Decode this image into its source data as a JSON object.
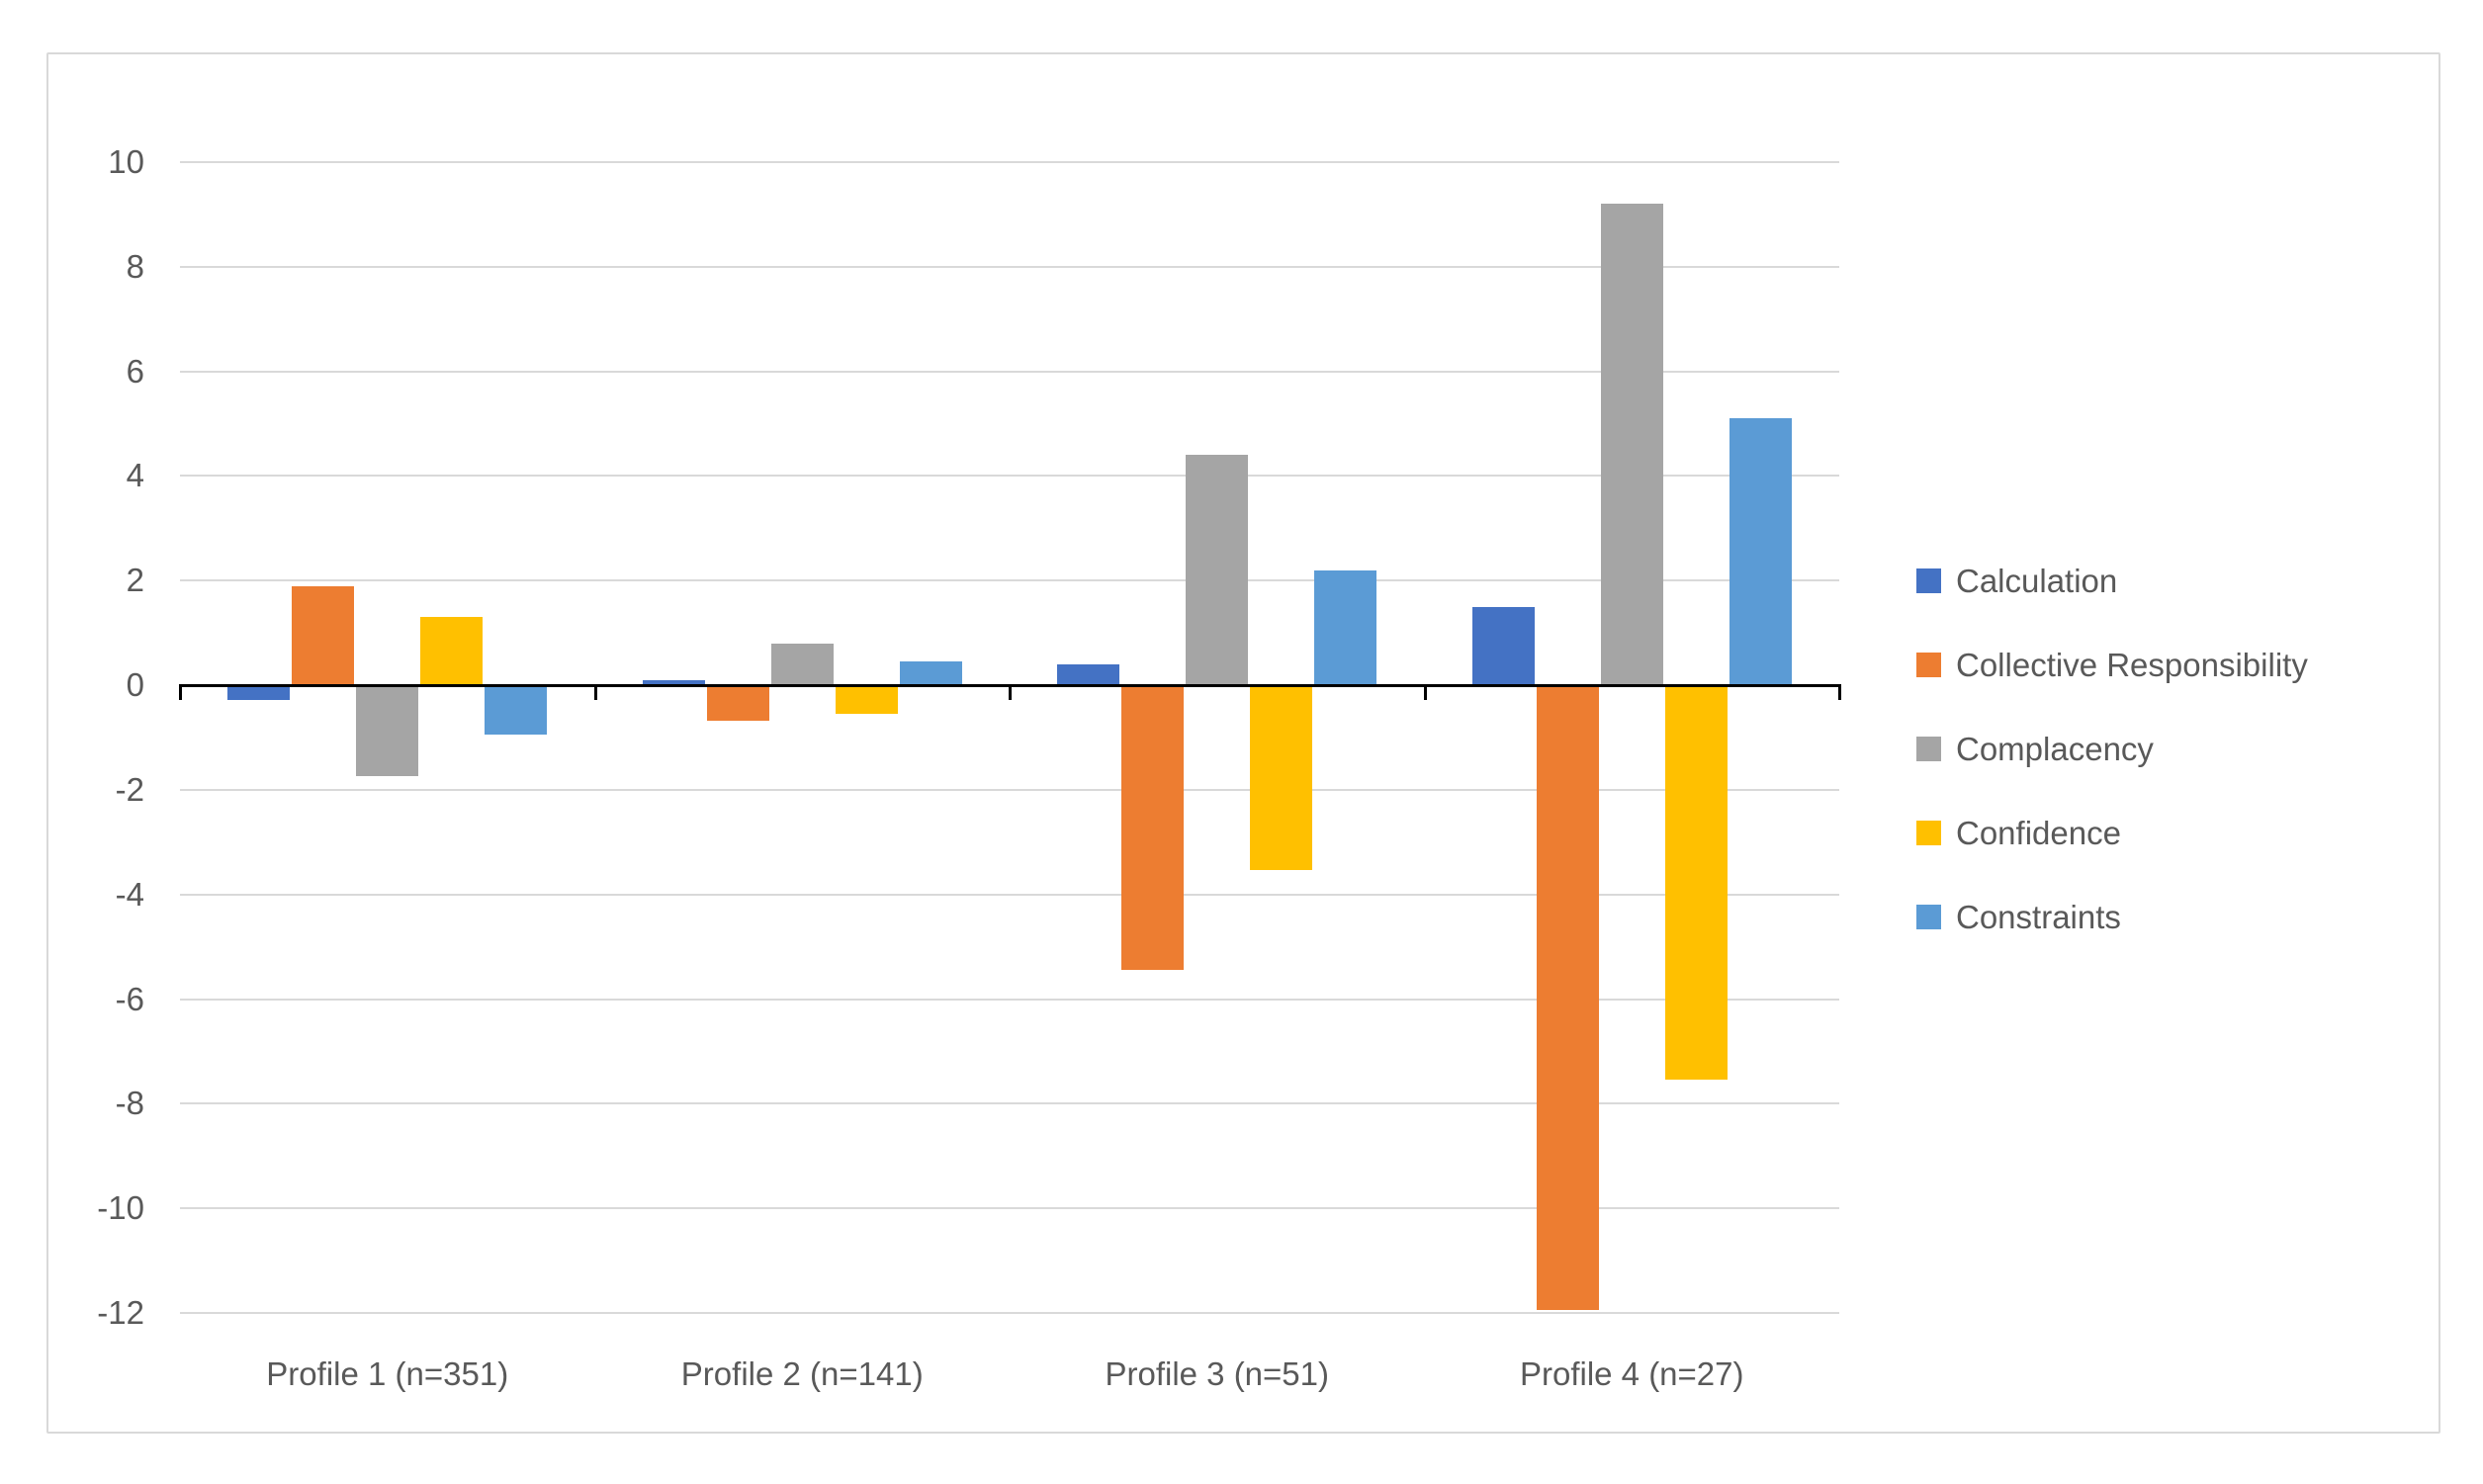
{
  "chart_data": {
    "type": "bar",
    "title": "",
    "xlabel": "",
    "ylabel": "",
    "categories": [
      "Profile 1 (n=351)",
      "Profile 2 (n=141)",
      "Profile 3 (n=51)",
      "Profile 4 (n=27)"
    ],
    "series": [
      {
        "name": "Calculation",
        "color": "#4472C4",
        "values": [
          -0.25,
          0.1,
          0.4,
          1.5
        ]
      },
      {
        "name": "Collective Responsibility",
        "color": "#ED7D31",
        "values": [
          1.9,
          -0.65,
          -5.4,
          -11.9
        ]
      },
      {
        "name": "Complacency",
        "color": "#A5A5A5",
        "values": [
          -1.7,
          0.8,
          4.4,
          9.2
        ]
      },
      {
        "name": "Confidence",
        "color": "#FFC000",
        "values": [
          1.3,
          -0.5,
          -3.5,
          -7.5
        ]
      },
      {
        "name": "Constraints",
        "color": "#5B9BD5",
        "values": [
          -0.9,
          0.45,
          2.2,
          5.1
        ]
      }
    ],
    "y_axis": {
      "min": -12,
      "max": 10,
      "step": 2,
      "tick_labels": [
        "10",
        "8",
        "6",
        "4",
        "2",
        "0",
        "-2",
        "-4",
        "-6",
        "-8",
        "-10",
        "-12"
      ]
    },
    "legend_position": "right",
    "grid": true,
    "colors": {
      "gridline": "#D9D9D9",
      "axis_line": "#000000",
      "text": "#595959",
      "frame_border": "#D9D9D9",
      "background": "#FFFFFF"
    }
  }
}
